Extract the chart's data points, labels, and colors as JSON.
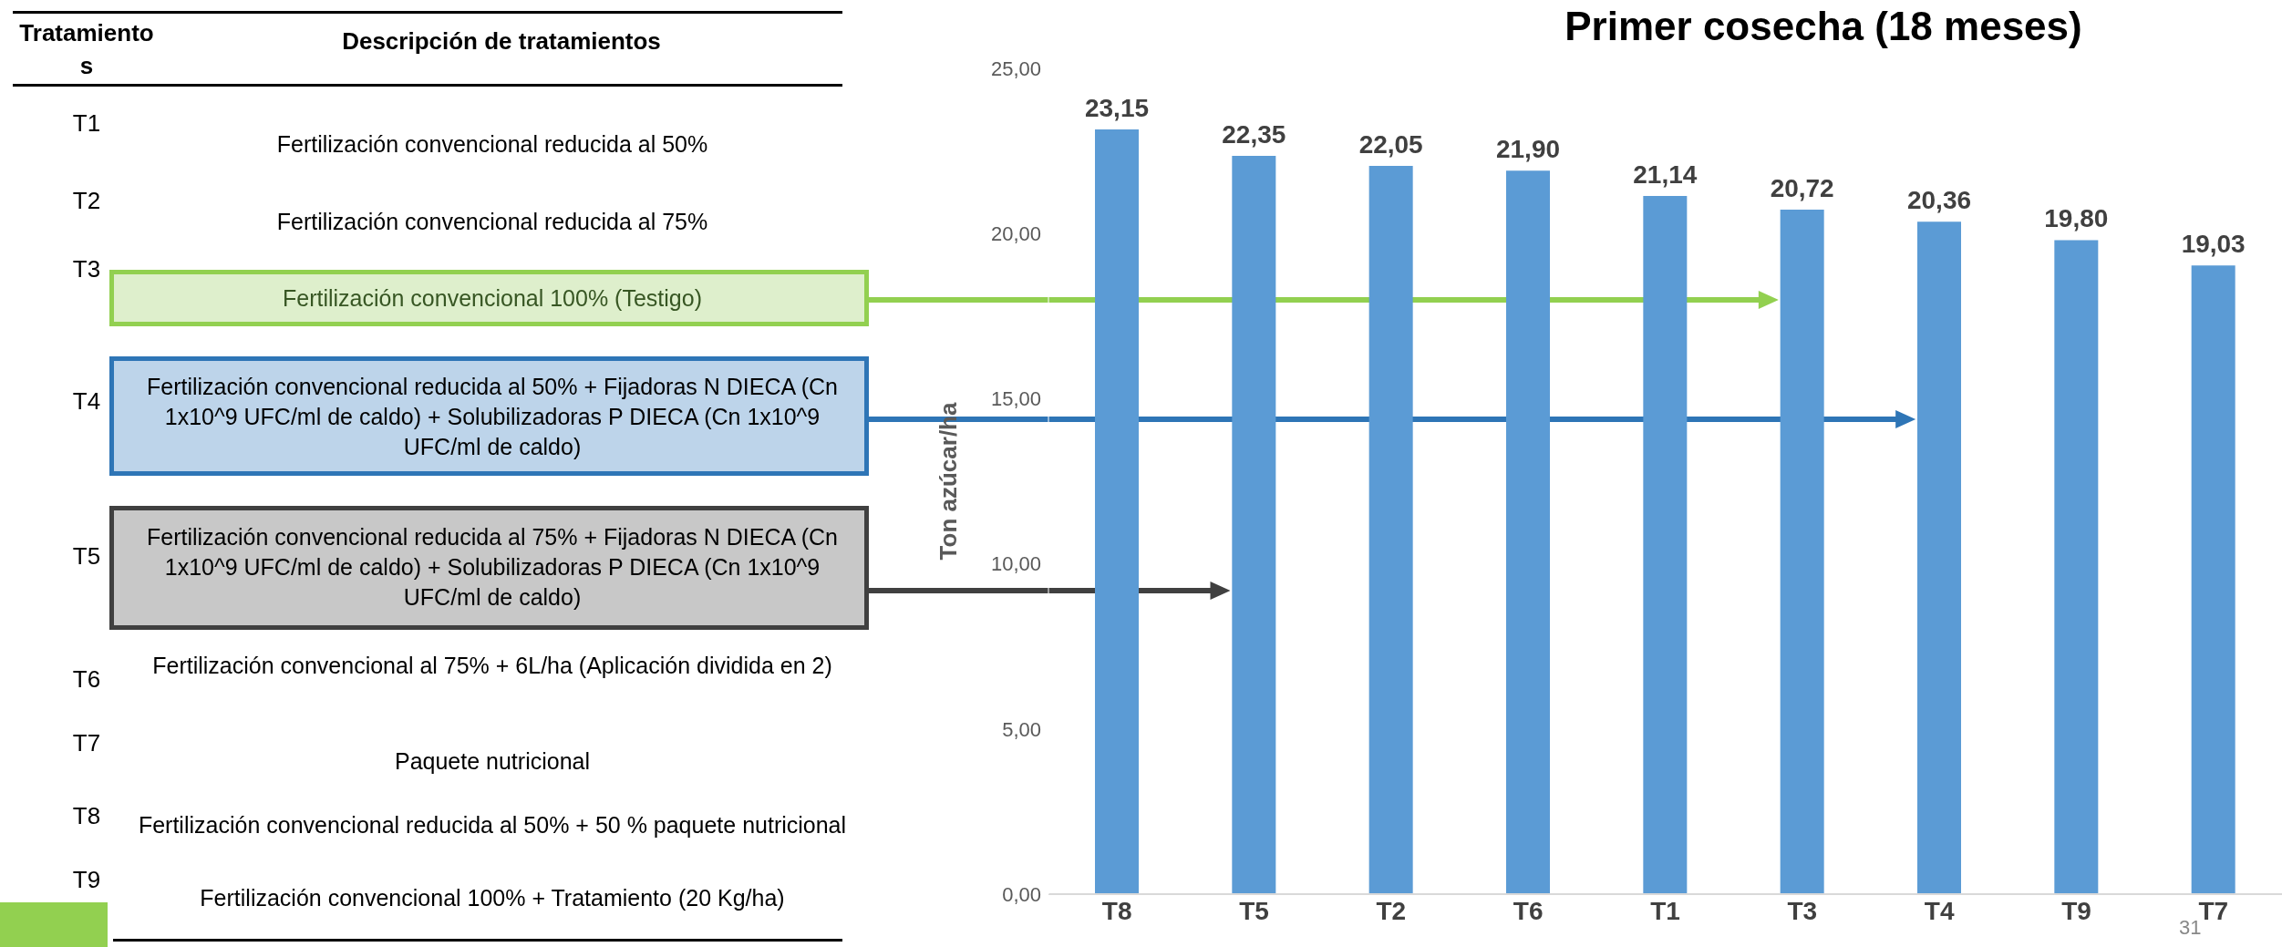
{
  "chart_data": {
    "type": "bar",
    "title": "Primer cosecha (18 meses)",
    "ylabel": "Ton azúcar/ha",
    "categories": [
      "T8",
      "T5",
      "T2",
      "T6",
      "T1",
      "T3",
      "T4",
      "T9",
      "T7"
    ],
    "values": [
      23.15,
      22.35,
      22.05,
      21.9,
      21.14,
      20.72,
      20.36,
      19.8,
      19.03
    ],
    "value_labels": [
      "23,15",
      "22,35",
      "22,05",
      "21,90",
      "21,14",
      "20,72",
      "20,36",
      "19,80",
      "19,03"
    ],
    "color": "#5b9bd5",
    "ylim": [
      0,
      25
    ],
    "yticks": [
      {
        "value": 0,
        "label": "0,00"
      },
      {
        "value": 5,
        "label": "5,00"
      },
      {
        "value": 10,
        "label": "10,00"
      },
      {
        "value": 15,
        "label": "15,00"
      },
      {
        "value": 20,
        "label": "20,00"
      },
      {
        "value": 25,
        "label": "25,00"
      }
    ],
    "grid": false,
    "legend": false,
    "annotations": [
      "Tratamientos",
      "Descripción de tratamientos",
      "T1",
      "Fertilización convencional reducida al 50%",
      "T2",
      "Fertilización convencional reducida al 75%",
      "T3",
      "Fertilización convencional 100% (Testigo)",
      "T4",
      "Fertilización convencional reducida al 50% + Fijadoras N DIECA (Cn 1x10^9 UFC/ml de caldo) + Solubilizadoras P DIECA (Cn 1x10^9 UFC/ml de caldo)",
      "T5",
      "Fertilización convencional reducida al 75% + Fijadoras N DIECA (Cn 1x10^9 UFC/ml de caldo) + Solubilizadoras P DIECA (Cn 1x10^9 UFC/ml de caldo)",
      "T6",
      "Fertilización convencional al 75% + 6L/ha (Aplicación dividida en 2)",
      "T7",
      "Paquete nutricional",
      "T8",
      "Fertilización convencional reducida al 50% + 50 % paquete nutricional",
      "T9",
      "Fertilización convencional 100% + Tratamiento (20 Kg/ha)",
      "31"
    ]
  }
}
